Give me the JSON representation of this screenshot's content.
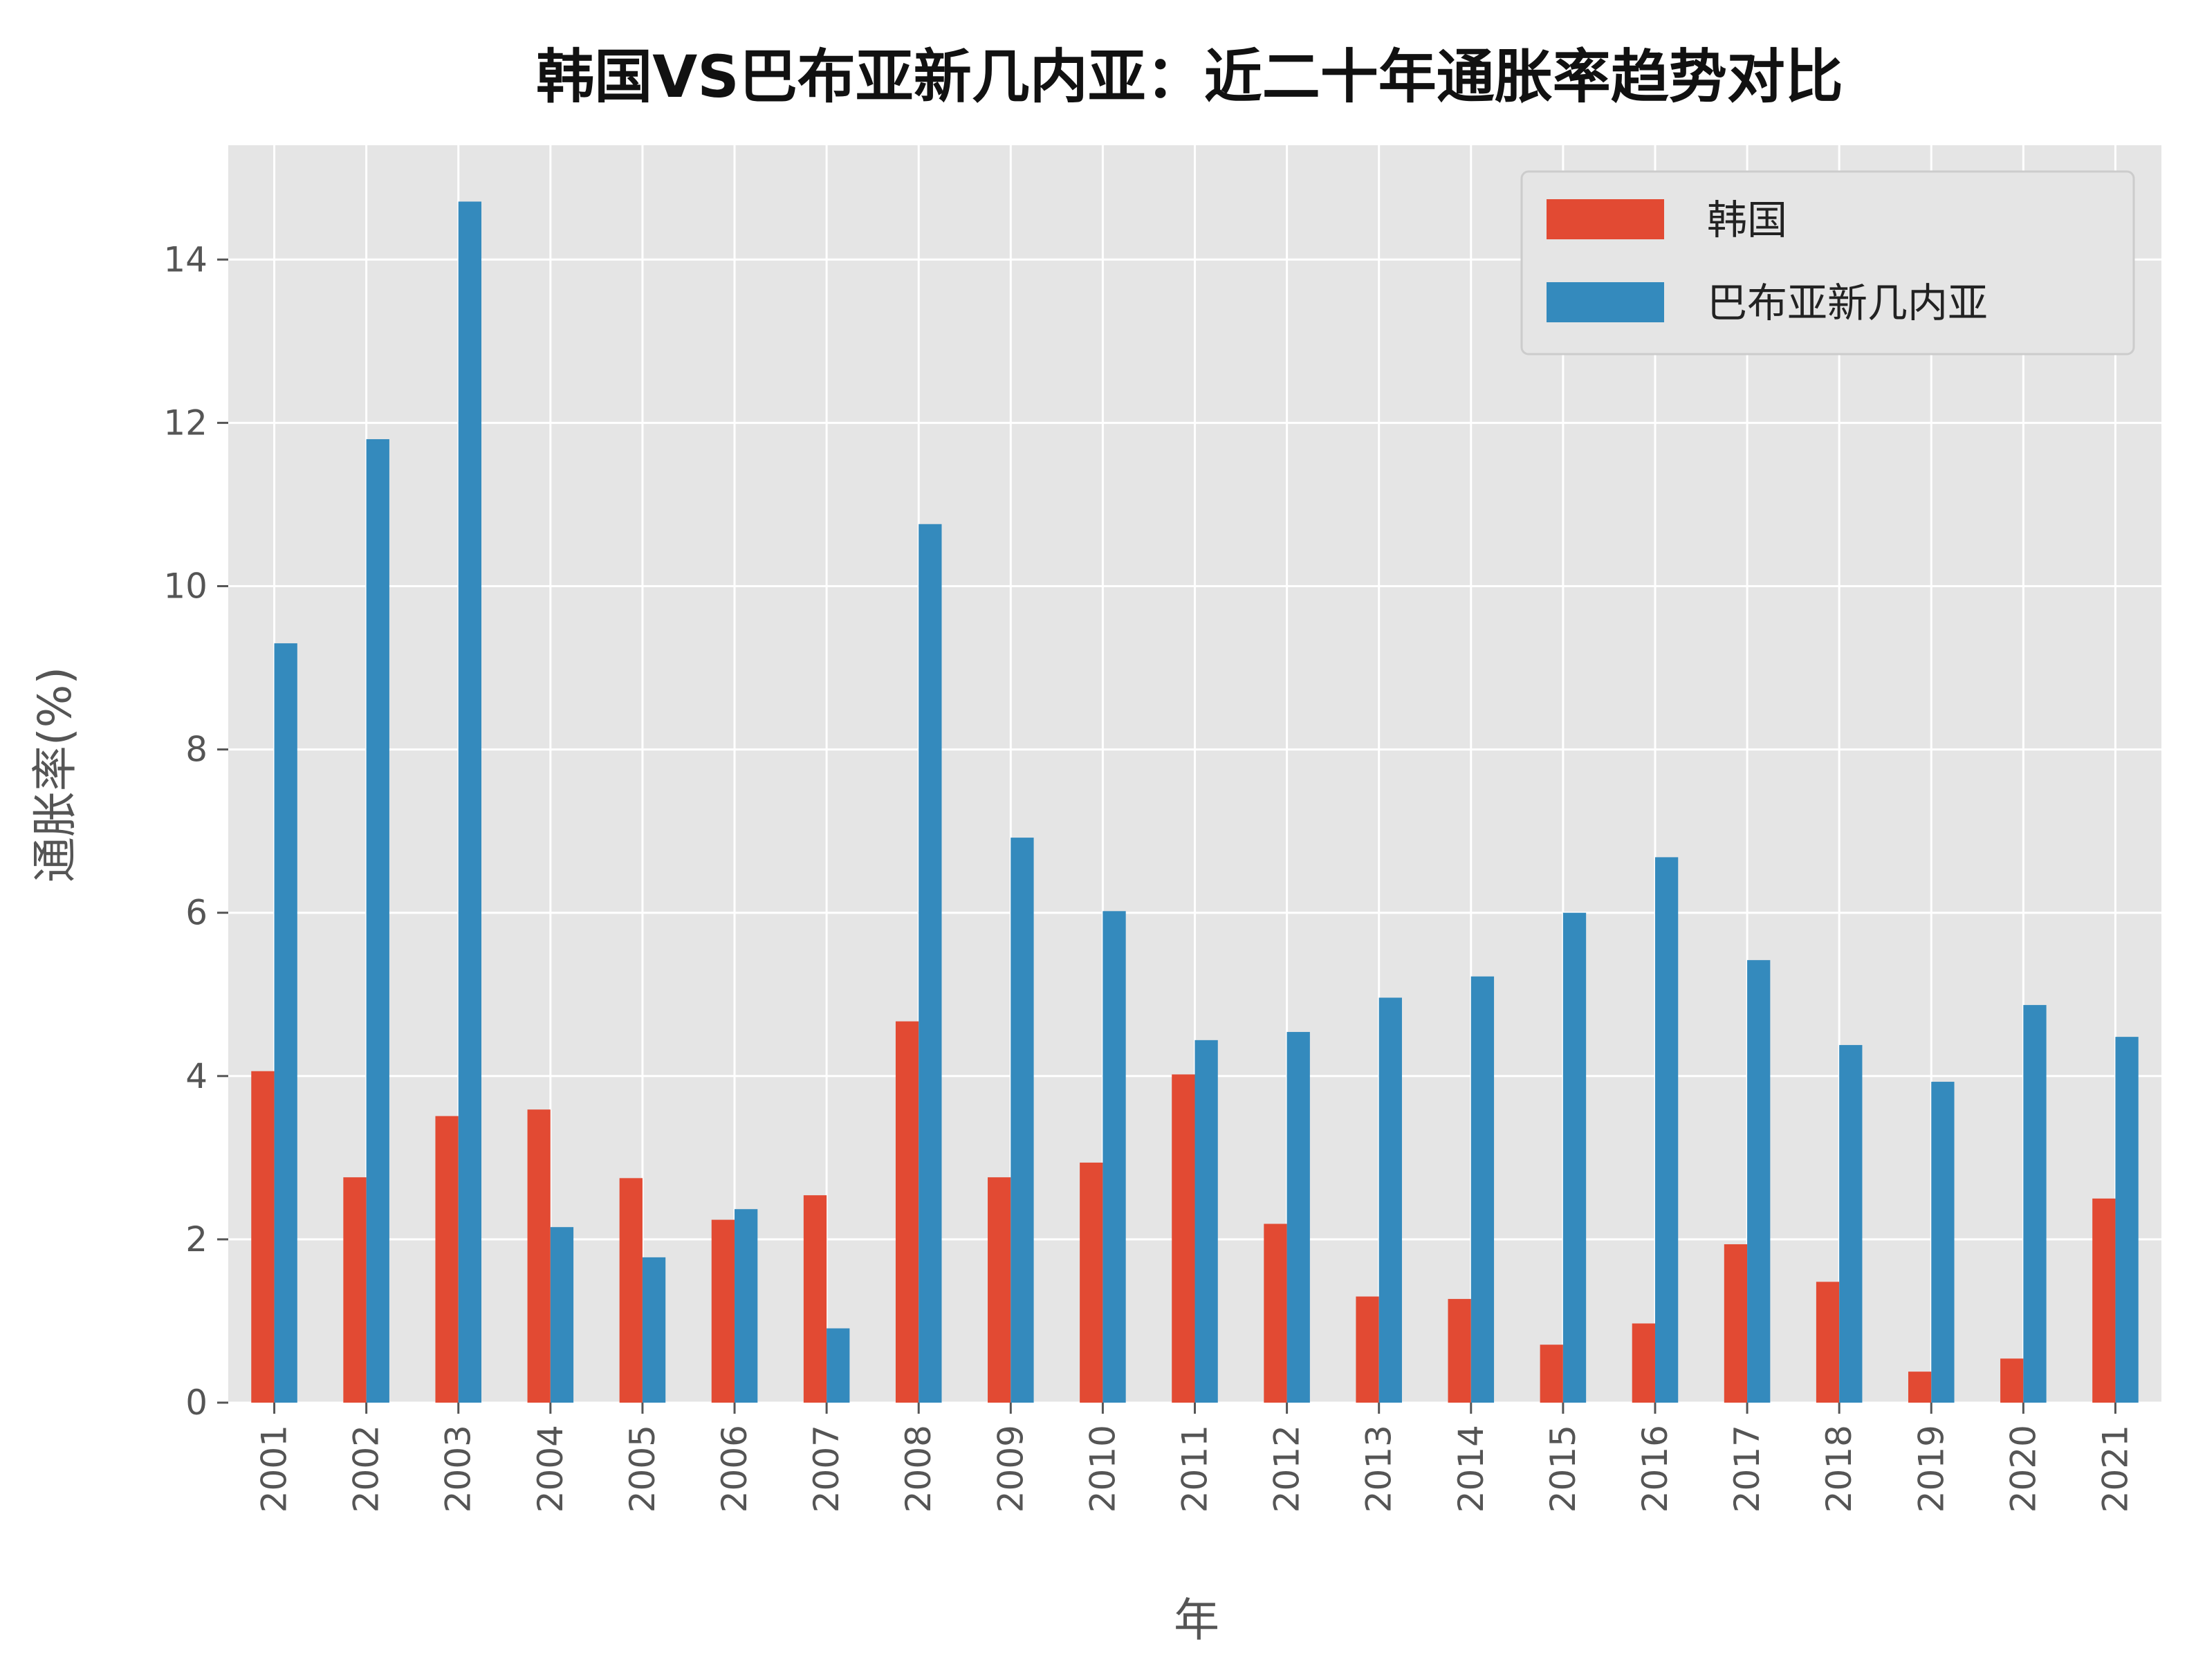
{
  "chart_data": {
    "type": "bar",
    "title": "韩国VS巴布亚新几内亚：近二十年通胀率趋势对比",
    "xlabel": "年",
    "ylabel": "通胀率(%)",
    "categories": [
      "2001",
      "2002",
      "2003",
      "2004",
      "2005",
      "2006",
      "2007",
      "2008",
      "2009",
      "2010",
      "2011",
      "2012",
      "2013",
      "2014",
      "2015",
      "2016",
      "2017",
      "2018",
      "2019",
      "2020",
      "2021"
    ],
    "series": [
      {
        "name": "韩国",
        "color": "#E24A33",
        "values": [
          4.06,
          2.76,
          3.51,
          3.59,
          2.75,
          2.24,
          2.54,
          4.67,
          2.76,
          2.94,
          4.02,
          2.19,
          1.3,
          1.27,
          0.71,
          0.97,
          1.94,
          1.48,
          0.38,
          0.54,
          2.5
        ]
      },
      {
        "name": "巴布亚新几内亚",
        "color": "#348ABD",
        "values": [
          9.3,
          11.8,
          14.71,
          2.15,
          1.78,
          2.37,
          0.91,
          10.76,
          6.92,
          6.02,
          4.44,
          4.54,
          4.96,
          5.22,
          6.0,
          6.68,
          5.42,
          4.38,
          3.93,
          4.87,
          4.48
        ]
      }
    ],
    "yticks": [
      0,
      2,
      4,
      6,
      8,
      10,
      12,
      14
    ],
    "ylim": [
      0,
      15.4
    ],
    "grid": true,
    "legend_position": "top-right",
    "background_color": "#E5E5E5",
    "grid_color": "#FFFFFF"
  }
}
